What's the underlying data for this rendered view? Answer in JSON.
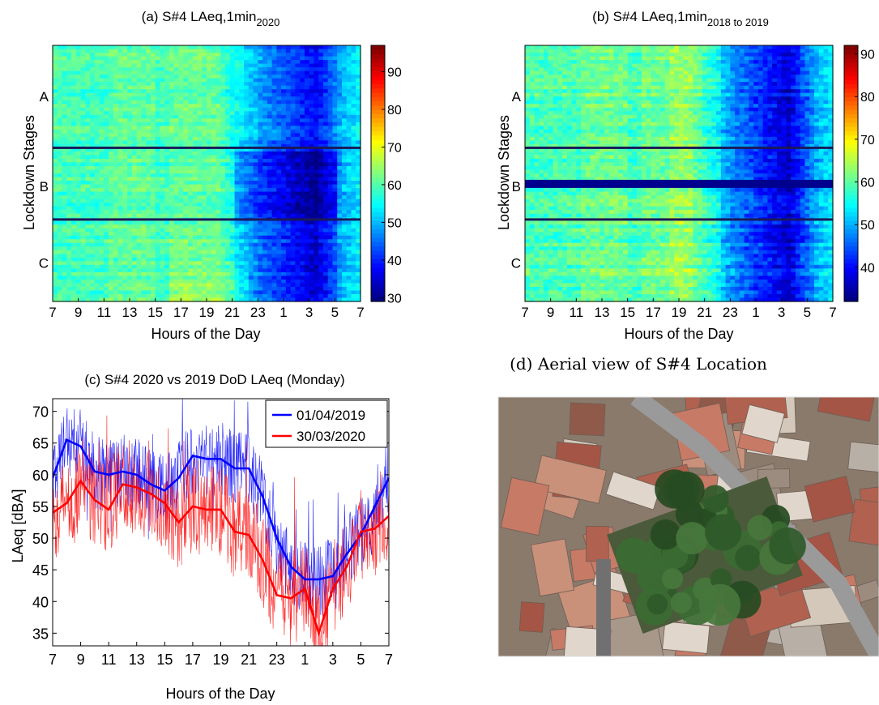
{
  "chart_data": [
    {
      "id": "a",
      "type": "heatmap",
      "title_main": "(a) S#4 LAeq,1min",
      "title_sub": "2020",
      "xlabel": "Hours of the Day",
      "ylabel": "Lockdown Stages",
      "x_ticks": [
        "7",
        "9",
        "11",
        "13",
        "15",
        "17",
        "19",
        "21",
        "23",
        "1",
        "3",
        "5",
        "7"
      ],
      "y_ticks": [
        "A",
        "B",
        "C"
      ],
      "colorbar_ticks": [
        30,
        40,
        50,
        60,
        70,
        80,
        90
      ],
      "colorbar_range": [
        29,
        97
      ],
      "colormap": "jet",
      "stage_boundaries_fraction": [
        0.4,
        0.68
      ]
    },
    {
      "id": "b",
      "type": "heatmap",
      "title_main": "(b) S#4 LAeq,1min",
      "title_sub": "2018 to 2019",
      "xlabel": "Hours of the Day",
      "ylabel": "Lockdown Stages",
      "x_ticks": [
        "7",
        "9",
        "11",
        "13",
        "15",
        "17",
        "19",
        "21",
        "23",
        "1",
        "3",
        "5",
        "7"
      ],
      "y_ticks": [
        "A",
        "B",
        "C"
      ],
      "colorbar_ticks": [
        40,
        50,
        60,
        70,
        80,
        90
      ],
      "colorbar_range": [
        32,
        92
      ],
      "colormap": "jet",
      "stage_boundaries_fraction": [
        0.4,
        0.68
      ]
    },
    {
      "id": "c",
      "type": "line",
      "title": "(c) S#4 2020 vs 2019 DoD LAeq (Monday)",
      "xlabel": "Hours of the Day",
      "ylabel": "LAeq [dBA]",
      "x_ticks": [
        "7",
        "9",
        "11",
        "13",
        "15",
        "17",
        "19",
        "21",
        "23",
        "1",
        "3",
        "5",
        "7"
      ],
      "y_ticks": [
        35,
        40,
        45,
        50,
        55,
        60,
        65,
        70
      ],
      "ylim": [
        33,
        72
      ],
      "x": [
        0,
        1,
        2,
        3,
        4,
        5,
        6,
        7,
        8,
        9,
        10,
        11,
        12,
        13,
        14,
        15,
        16,
        17,
        18,
        19,
        20,
        21,
        22,
        23,
        24
      ],
      "series": [
        {
          "name": "01/04/2019",
          "color": "#0000ff",
          "values": [
            59.5,
            65.5,
            64.5,
            60.5,
            60,
            60.5,
            60,
            58.5,
            57.5,
            59.5,
            63,
            62.5,
            62.5,
            61,
            61,
            56.5,
            50,
            45.5,
            43.5,
            43.5,
            44,
            47.5,
            50.5,
            55,
            59.5
          ]
        },
        {
          "name": "30/03/2020",
          "color": "#ff0000",
          "values": [
            54,
            55.5,
            59,
            56,
            54.5,
            58.5,
            58,
            57,
            55.5,
            52.5,
            55,
            54.5,
            54.5,
            51,
            50.5,
            46.5,
            41,
            40.5,
            42,
            35,
            42,
            45.5,
            51,
            51.5,
            53.5
          ]
        }
      ]
    }
  ],
  "panel_d": {
    "title": "(d) Aerial view of S#4 Location"
  }
}
